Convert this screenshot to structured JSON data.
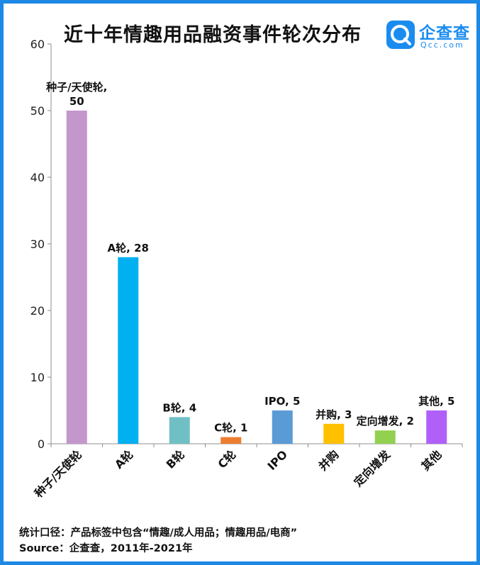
{
  "title": "近十年情趣用品融资事件轮次分布",
  "logo": {
    "name": "企查查",
    "sub": "Qcc.com",
    "icon": "qcc-logo-icon"
  },
  "chart_data": {
    "type": "bar",
    "categories": [
      "种子/天使轮",
      "A轮",
      "B轮",
      "C轮",
      "IPO",
      "并购",
      "定向增发",
      "其他"
    ],
    "values": [
      50,
      28,
      4,
      1,
      5,
      3,
      2,
      5
    ],
    "data_labels": [
      "种子/天使轮,\n50",
      "A轮, 28",
      "B轮, 4",
      "C轮, 1",
      "IPO, 5",
      "并购, 3",
      "定向增发, 2",
      "其他, 5"
    ],
    "colors": [
      "#c396cc",
      "#00b0f0",
      "#70bfc4",
      "#ed7d31",
      "#5b9bd5",
      "#ffc000",
      "#92d050",
      "#b060f8"
    ],
    "ylim": [
      0,
      60
    ],
    "yticks": [
      0,
      10,
      20,
      30,
      40,
      50,
      60
    ],
    "xlabel": "",
    "ylabel": "",
    "grid": false,
    "legend": "none"
  },
  "footer": {
    "line1": "统计口径：产品标签中包含“情趣/成人用品；情趣用品/电商”",
    "line2": "Source：企查查，2011年-2021年"
  }
}
